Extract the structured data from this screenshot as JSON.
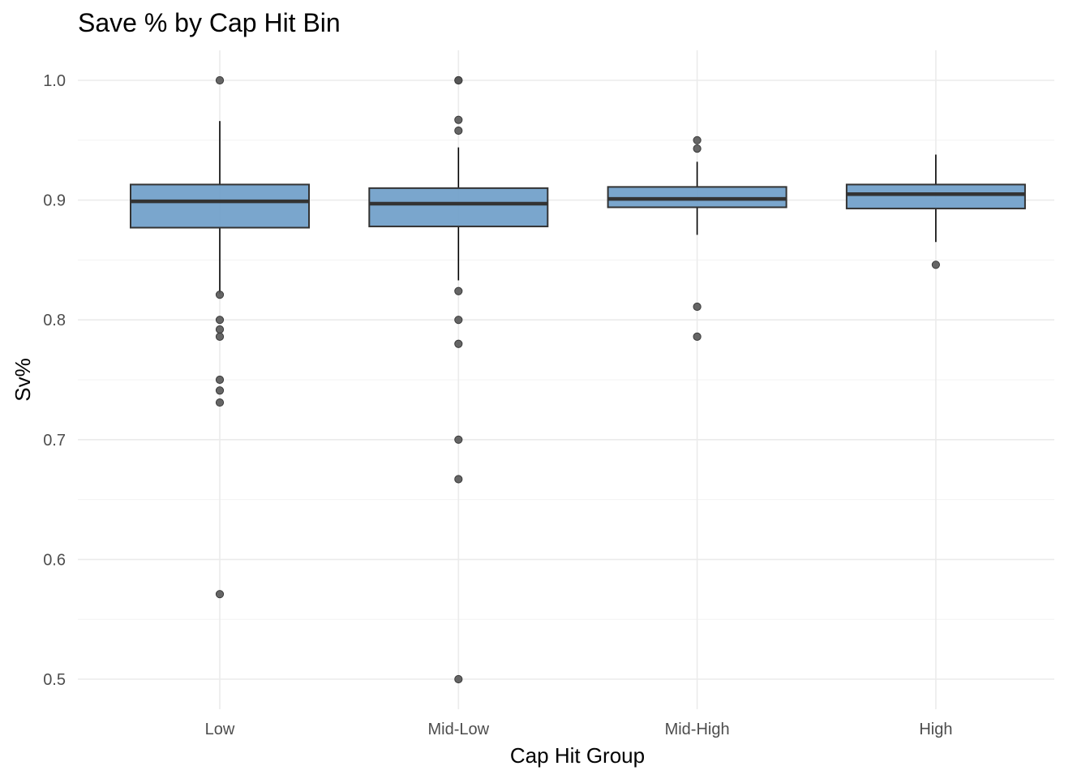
{
  "chart_data": {
    "type": "boxplot",
    "title": "Save % by Cap Hit Bin",
    "xlabel": "Cap Hit Group",
    "ylabel": "Sv%",
    "categories": [
      "Low",
      "Mid-Low",
      "Mid-High",
      "High"
    ],
    "ylim": [
      0.475,
      1.025
    ],
    "yticks": [
      0.5,
      0.6,
      0.7,
      0.8,
      0.9,
      1.0
    ],
    "ytick_labels": [
      "0.5",
      "0.6",
      "0.7",
      "0.8",
      "0.9",
      "1.0"
    ],
    "grid": true,
    "colors": {
      "box_fill": "#6f9ec9",
      "box_stroke": "#333333",
      "outlier": "#555555",
      "grid_major": "#ebebeb",
      "grid_minor": "#f3f3f3",
      "axis_text": "#4d4d4d"
    },
    "boxes": [
      {
        "category": "Low",
        "q1": 0.877,
        "median": 0.899,
        "q3": 0.913,
        "whisker_low": 0.822,
        "whisker_high": 0.966,
        "outliers": [
          1.0,
          0.821,
          0.8,
          0.792,
          0.786,
          0.75,
          0.741,
          0.731,
          0.571
        ]
      },
      {
        "category": "Mid-Low",
        "q1": 0.878,
        "median": 0.897,
        "q3": 0.91,
        "whisker_low": 0.833,
        "whisker_high": 0.944,
        "outliers": [
          1.0,
          1.0,
          0.967,
          0.958,
          0.824,
          0.8,
          0.78,
          0.7,
          0.667,
          0.5
        ]
      },
      {
        "category": "Mid-High",
        "q1": 0.894,
        "median": 0.901,
        "q3": 0.911,
        "whisker_low": 0.871,
        "whisker_high": 0.932,
        "outliers": [
          0.95,
          0.943,
          0.811,
          0.786
        ]
      },
      {
        "category": "High",
        "q1": 0.893,
        "median": 0.905,
        "q3": 0.913,
        "whisker_low": 0.865,
        "whisker_high": 0.938,
        "outliers": [
          0.846
        ]
      }
    ]
  }
}
